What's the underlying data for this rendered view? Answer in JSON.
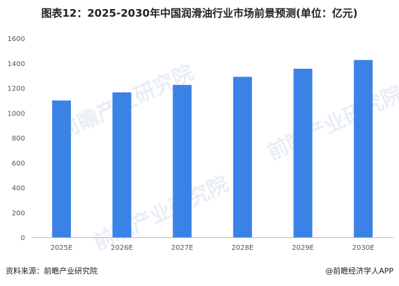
{
  "title": "图表12：2025-2030年中国润滑油行业市场前景预测(单位：亿元)",
  "footer": {
    "source": "资料来源：前瞻产业研究院",
    "brand": "@前瞻经济学人APP"
  },
  "watermark": "前瞻产业研究院",
  "colors": {
    "bar": "#3b82e6",
    "axis": "#bbbbbb"
  },
  "chart_data": {
    "type": "bar",
    "title": "图表12：2025-2030年中国润滑油行业市场前景预测(单位：亿元)",
    "xlabel": "",
    "ylabel": "",
    "categories": [
      "2025E",
      "2026E",
      "2027E",
      "2028E",
      "2029E",
      "2030E"
    ],
    "values": [
      1100,
      1165,
      1225,
      1290,
      1355,
      1425
    ],
    "ylim": [
      0,
      1600
    ],
    "yticks": [
      0,
      200,
      400,
      600,
      800,
      1000,
      1200,
      1400,
      1600
    ],
    "grid": false,
    "legend": "none"
  }
}
